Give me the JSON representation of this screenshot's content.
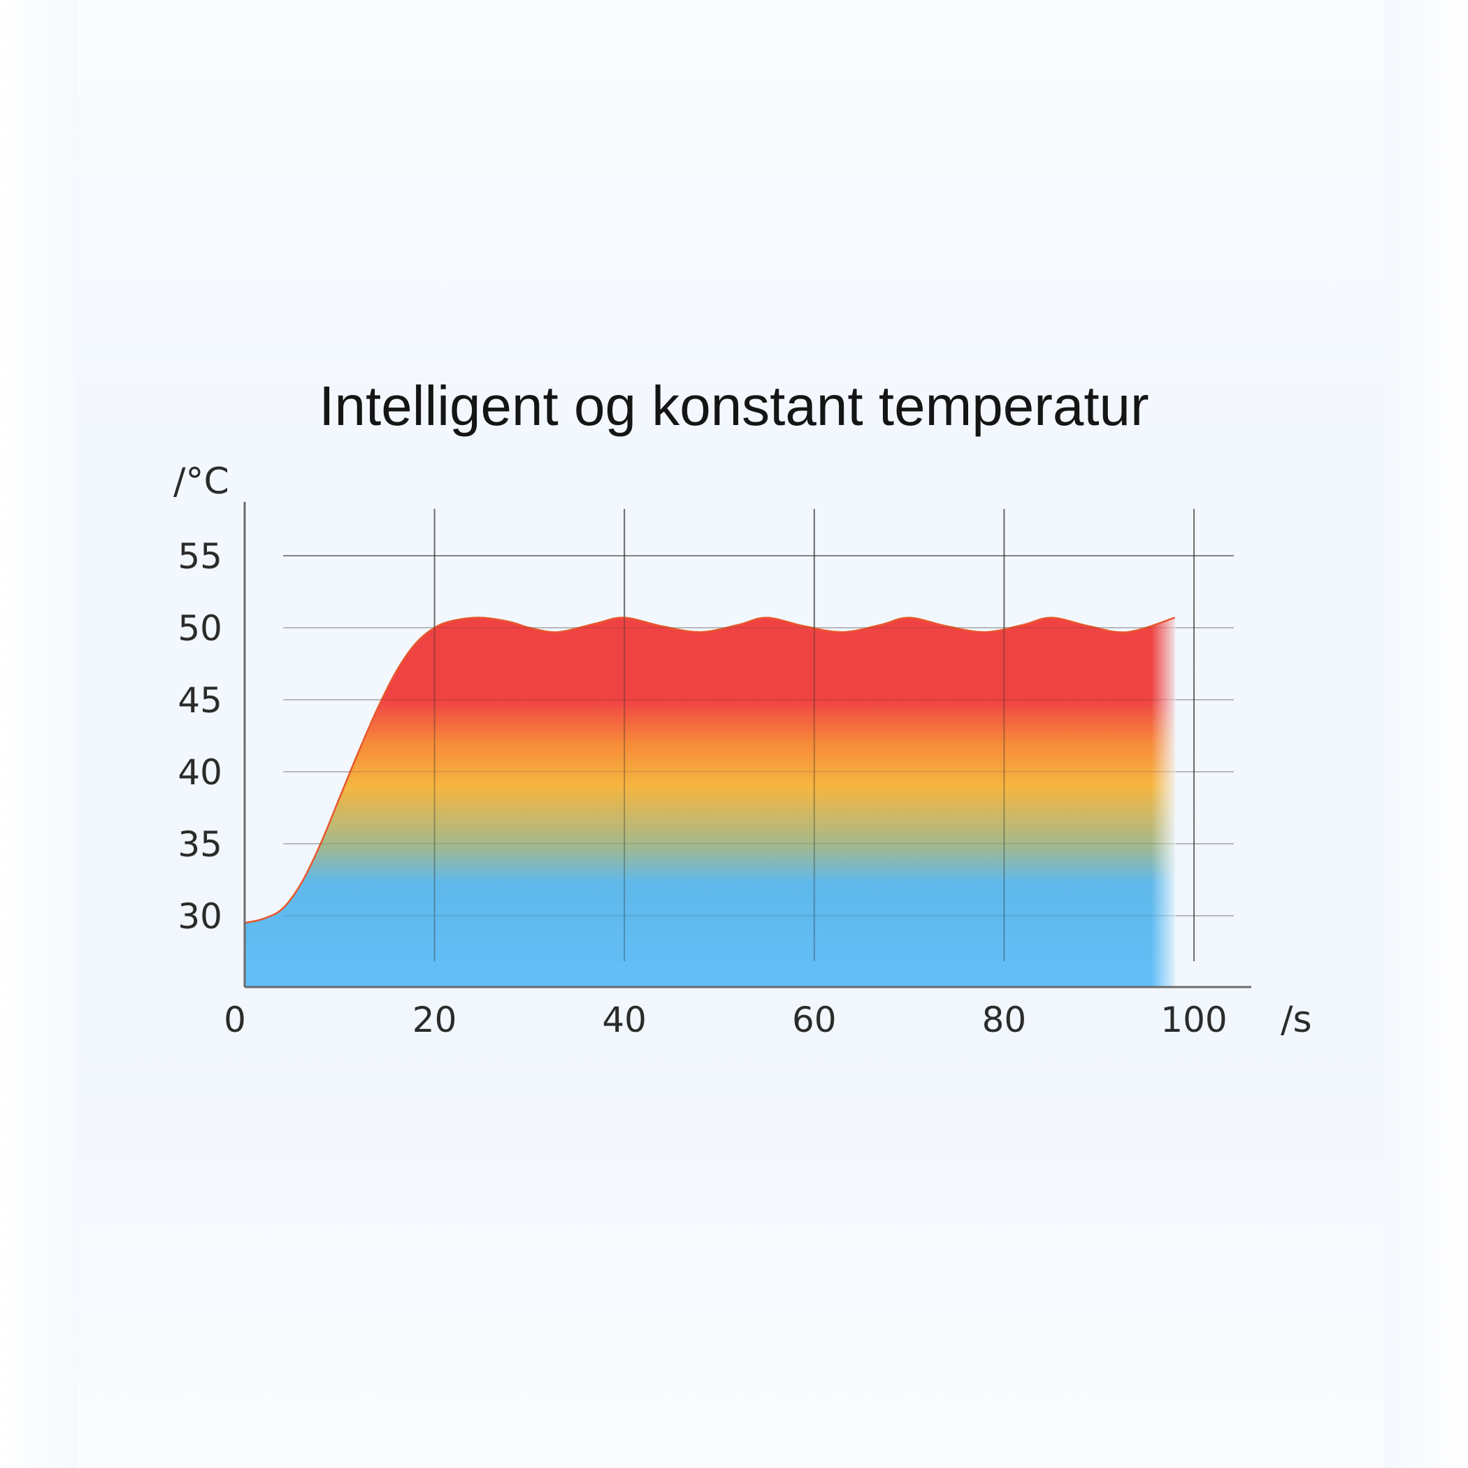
{
  "chart_data": {
    "type": "area",
    "title": "Intelligent og konstant temperatur",
    "xlabel": "/s",
    "ylabel": "/°C",
    "x_ticks": [
      "0",
      "20",
      "40",
      "60",
      "80",
      "100"
    ],
    "y_ticks": [
      "30",
      "35",
      "40",
      "45",
      "50",
      "55"
    ],
    "xlim": [
      0,
      105
    ],
    "ylim": [
      25,
      58
    ],
    "grid": true,
    "series": [
      {
        "x": [
          0,
          2,
          4,
          6,
          8,
          10,
          12,
          14,
          16,
          18,
          20,
          22,
          25,
          28,
          30,
          33,
          37,
          40,
          44,
          48,
          52,
          55,
          59,
          63,
          67,
          70,
          74,
          78,
          82,
          85,
          89,
          93,
          98
        ],
        "y": [
          29.5,
          29.8,
          30.5,
          32.3,
          35.0,
          38.2,
          41.4,
          44.4,
          47.0,
          48.9,
          50.0,
          50.5,
          50.7,
          50.4,
          50.0,
          49.7,
          50.3,
          50.7,
          50.1,
          49.7,
          50.2,
          50.7,
          50.1,
          49.7,
          50.2,
          50.7,
          50.1,
          49.7,
          50.2,
          50.7,
          50.1,
          49.7,
          50.7
        ]
      }
    ],
    "colors": {
      "line": "#e8572c",
      "fill_top": "#ef4343",
      "fill_mid": "#f6b640",
      "fill_bottom": "#63bff9",
      "grid": "#3a3a3a"
    }
  }
}
